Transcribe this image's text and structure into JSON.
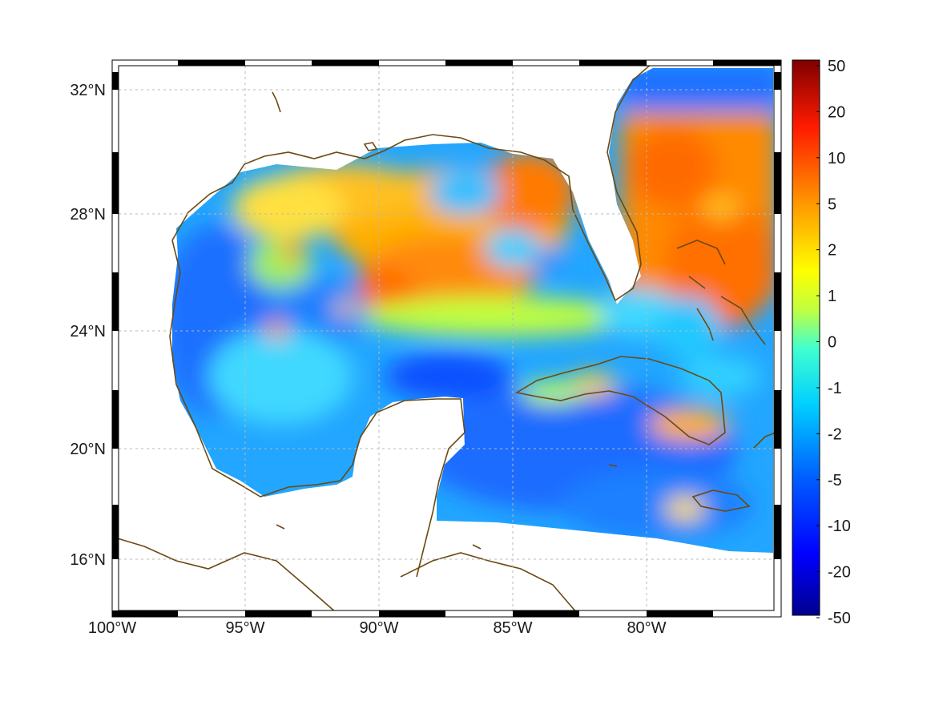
{
  "map": {
    "region": "Gulf of Mexico and western Caribbean",
    "lon_range": [
      -100,
      -75
    ],
    "lat_range": [
      14.2,
      32.8
    ],
    "lon_ticks": [
      "100°W",
      "95°W",
      "90°W",
      "85°W",
      "80°W"
    ],
    "lat_ticks": [
      "32°N",
      "28°N",
      "24°N",
      "20°N",
      "16°N"
    ],
    "grid": "dotted",
    "frame": "black-and-white alternating border",
    "coastline_color": "#6b4a12",
    "ocean_field": {
      "positive_regions": [
        "northeastern Gulf",
        "central Gulf loop area",
        "Gulf Stream off Florida / Bahamas",
        "Cuba coast",
        "Hispaniola north"
      ],
      "negative_regions": [
        "western Gulf",
        "Caribbean Sea",
        "Yucatan shelf",
        "northwest Atlantic corner"
      ]
    }
  },
  "colorbar": {
    "colormap": "jet",
    "scale": "symmetric nonlinear",
    "labels": [
      "50",
      "20",
      "10",
      "5",
      "2",
      "1",
      "0",
      "-1",
      "-2",
      "-5",
      "-10",
      "-20",
      "-50"
    ],
    "colors": [
      "#7f0000",
      "#d60000",
      "#ff3000",
      "#ff8a00",
      "#ffc400",
      "#ffff00",
      "#80ff80",
      "#00ffff",
      "#00c8ff",
      "#0080ff",
      "#0020ff",
      "#0000c8",
      "#00008f"
    ]
  }
}
